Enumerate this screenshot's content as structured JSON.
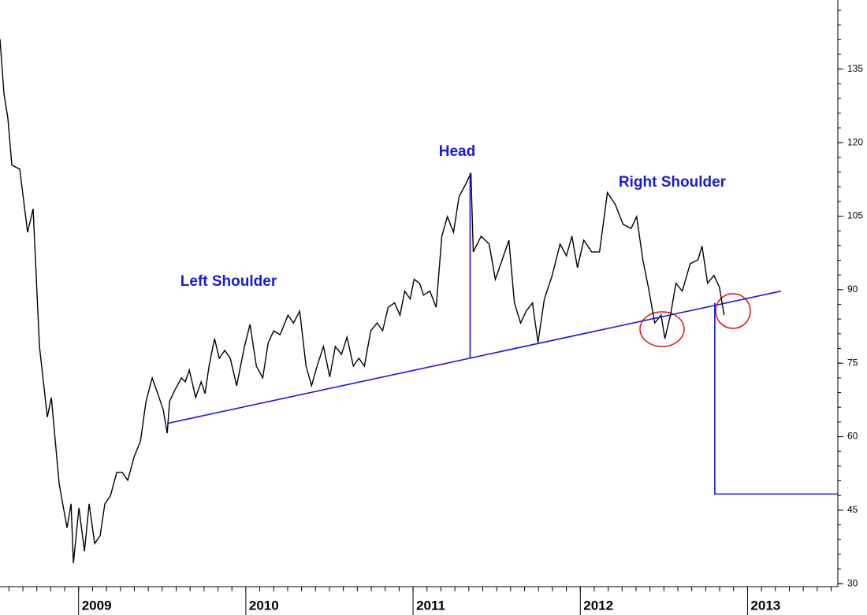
{
  "chart_data": {
    "type": "line",
    "color": "#000000",
    "x": [
      2008.53,
      2008.554,
      2008.577,
      2008.601,
      2008.648,
      2008.695,
      2008.728,
      2008.766,
      2008.813,
      2008.837,
      2008.884,
      2008.931,
      2008.955,
      2008.969,
      2009.002,
      2009.035,
      2009.063,
      2009.096,
      2009.129,
      2009.157,
      2009.19,
      2009.228,
      2009.261,
      2009.294,
      2009.332,
      2009.37,
      2009.403,
      2009.44,
      2009.473,
      2009.506,
      2009.53,
      2009.544,
      2009.577,
      2009.615,
      2009.638,
      2009.662,
      2009.7,
      2009.733,
      2009.756,
      2009.78,
      2009.813,
      2009.841,
      2009.874,
      2009.907,
      2009.945,
      2009.992,
      2010.025,
      2010.063,
      2010.101,
      2010.134,
      2010.167,
      2010.205,
      2010.252,
      2010.285,
      2010.322,
      2010.36,
      2010.393,
      2010.426,
      2010.464,
      2010.502,
      2010.535,
      2010.572,
      2010.605,
      2010.643,
      2010.676,
      2010.709,
      2010.747,
      2010.785,
      2010.818,
      2010.851,
      2010.889,
      2010.922,
      2010.95,
      2010.983,
      2011.006,
      2011.039,
      2011.063,
      2011.101,
      2011.138,
      2011.172,
      2011.205,
      2011.242,
      2011.275,
      2011.313,
      2011.346,
      2011.36,
      2011.407,
      2011.455,
      2011.492,
      2011.525,
      2011.573,
      2011.606,
      2011.643,
      2011.676,
      2011.714,
      2011.747,
      2011.785,
      2011.832,
      2011.879,
      2011.917,
      2011.95,
      2011.983,
      2012.021,
      2012.068,
      2012.115,
      2012.162,
      2012.209,
      2012.256,
      2012.304,
      2012.337,
      2012.374,
      2012.407,
      2012.445,
      2012.483,
      2012.506,
      2012.539,
      2012.572,
      2012.61,
      2012.657,
      2012.704,
      2012.728,
      2012.761,
      2012.799,
      2012.832,
      2012.86
    ],
    "values": [
      141.1,
      129.9,
      125,
      115.4,
      114.6,
      101.7,
      106.5,
      78.4,
      64,
      68,
      50.3,
      41.4,
      46.3,
      34.2,
      45.5,
      36.6,
      46.3,
      38.2,
      39.8,
      46.3,
      47.9,
      52.7,
      52.7,
      51.1,
      55.9,
      59.1,
      67.2,
      72,
      68.8,
      65.5,
      60.7,
      67.2,
      69.6,
      72,
      71.2,
      73.6,
      68,
      71.2,
      68.8,
      74.4,
      80,
      76,
      77.6,
      76,
      70.4,
      78.4,
      82.9,
      74.4,
      72,
      79.2,
      81.6,
      80.8,
      84.8,
      83.2,
      85.6,
      74.4,
      70.4,
      74.4,
      78.4,
      72.2,
      78.4,
      76.8,
      80.3,
      74.4,
      76,
      74.4,
      81.6,
      83.2,
      81.6,
      86.4,
      87.3,
      84.8,
      89.7,
      88.1,
      92.1,
      91.3,
      88.9,
      89.7,
      86.4,
      100.9,
      104.9,
      101.7,
      109,
      111.4,
      113.8,
      97.7,
      100.9,
      99.3,
      92.1,
      95.3,
      100.1,
      87.3,
      83.2,
      85.6,
      87.3,
      79.2,
      88.1,
      92.9,
      99.3,
      96.9,
      100.9,
      94.5,
      100.1,
      97.7,
      97.7,
      109.8,
      107.4,
      103.3,
      102.5,
      104.9,
      96.1,
      90.5,
      83.2,
      84.8,
      80,
      84.8,
      91.3,
      89.7,
      95.3,
      96.1,
      98.9,
      91.3,
      92.9,
      90.5,
      84.8
    ],
    "xlim": [
      2008.53,
      2013.54
    ],
    "ylim": [
      29.4,
      149.1
    ],
    "xticks": [
      2009,
      2010,
      2011,
      2012,
      2013
    ],
    "yticks": [
      30,
      45,
      60,
      75,
      90,
      105,
      120,
      135
    ],
    "annotations": [
      "Head",
      "Left Shoulder",
      "Right Shoulder"
    ],
    "lines": [
      {
        "color": "#1a1ad6",
        "x": [
          2009.53,
          2013.2
        ],
        "y": [
          62.7,
          89.7
        ]
      },
      {
        "color": "#1a1ad6",
        "x": [
          2011.341,
          2011.341
        ],
        "y": [
          113.8,
          76.0
        ]
      },
      {
        "color": "#1a1ad6",
        "x": [
          2012.804,
          2012.804,
          2013.54
        ],
        "y": [
          87.3,
          48.3,
          48.3
        ]
      }
    ]
  }
}
